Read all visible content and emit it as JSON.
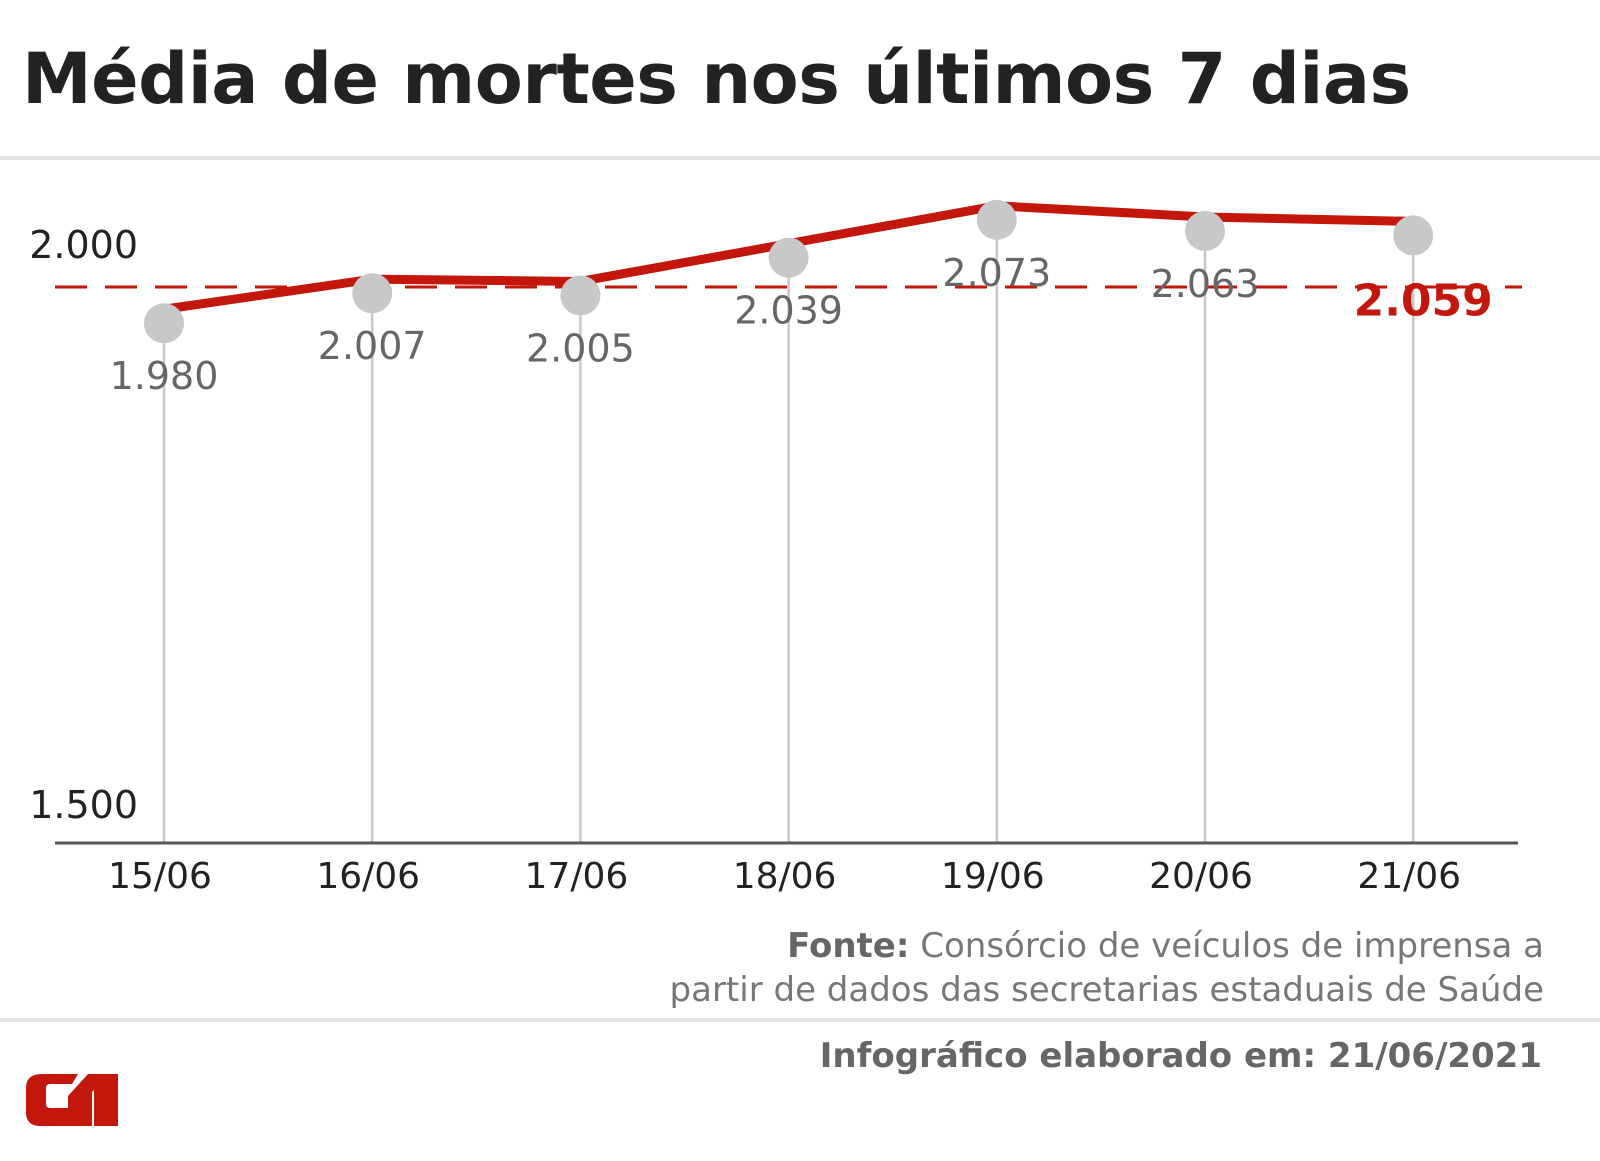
{
  "title": "Média de mortes nos últimos 7 dias",
  "chart_data": {
    "type": "line",
    "title": "Média de mortes nos últimos 7 dias",
    "categories": [
      "15/06",
      "16/06",
      "17/06",
      "18/06",
      "19/06",
      "20/06",
      "21/06"
    ],
    "values": [
      1980,
      2007,
      2005,
      2039,
      2073,
      2063,
      2059
    ],
    "value_labels": [
      "1.980",
      "2.007",
      "2.005",
      "2.039",
      "2.073",
      "2.063",
      "2.059"
    ],
    "y_ticks": [
      {
        "value": 2000,
        "label": "2.000"
      },
      {
        "value": 1500,
        "label": "1.500"
      }
    ],
    "ylim": [
      1500,
      2100
    ],
    "reference_line": {
      "value": 2000,
      "style": "dashed"
    },
    "highlight_last": true,
    "grid": "vertical lines at each point",
    "colors": {
      "line": "#c4170c",
      "marker": "#c8c8c8",
      "grid": "#c8c8c8",
      "label": "#666666",
      "highlight": "#c4170c",
      "axis": "#555555"
    }
  },
  "source": {
    "label": "Fonte:",
    "line1": "Consórcio de veículos de imprensa a",
    "line2": "partir de dados das secretarias estaduais de Saúde"
  },
  "footer": {
    "made": "Infográfico elaborado em: 21/06/2021",
    "logo": "G1"
  }
}
